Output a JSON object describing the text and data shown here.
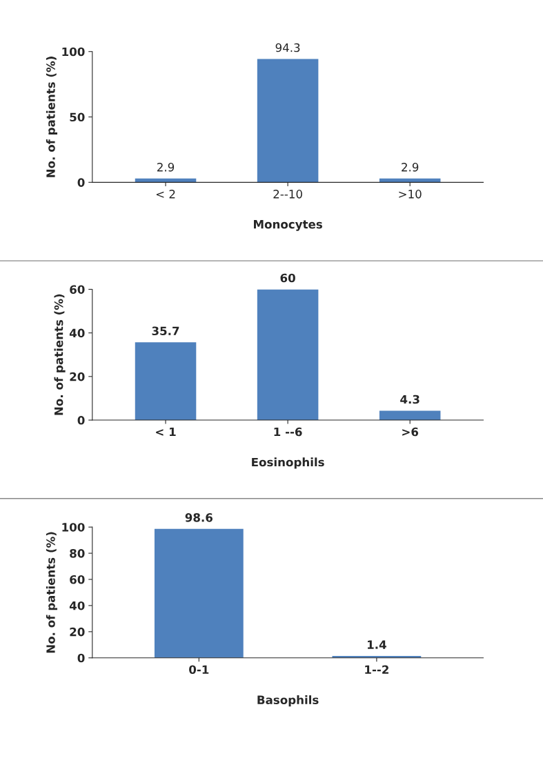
{
  "chart_data": [
    {
      "type": "bar",
      "categories": [
        "< 2",
        "2--10",
        ">10"
      ],
      "values": [
        2.9,
        94.3,
        2.9
      ],
      "color": "#4f81bd",
      "ylim": [
        0,
        100
      ],
      "yticks": [
        0,
        50,
        100
      ],
      "xlabel": "Monocytes",
      "ylabel": "No. of patients (%)",
      "data_labels": true,
      "grid": false,
      "legend": false
    },
    {
      "type": "bar",
      "categories": [
        "< 1",
        "1 --6",
        ">6"
      ],
      "values": [
        35.7,
        60,
        4.3
      ],
      "color": "#4f81bd",
      "ylim": [
        0,
        60
      ],
      "yticks": [
        0,
        20,
        40,
        60
      ],
      "xlabel": "Eosinophils",
      "ylabel": "No. of patients (%)",
      "data_labels": true,
      "grid": false,
      "legend": false
    },
    {
      "type": "bar",
      "categories": [
        "0-1",
        "1--2"
      ],
      "values": [
        98.6,
        1.4
      ],
      "color": "#4f81bd",
      "ylim": [
        0,
        100
      ],
      "yticks": [
        0,
        20,
        40,
        60,
        80,
        100
      ],
      "xlabel": "Basophils",
      "ylabel": "No. of patients (%)",
      "data_labels": true,
      "grid": false,
      "legend": false
    }
  ]
}
